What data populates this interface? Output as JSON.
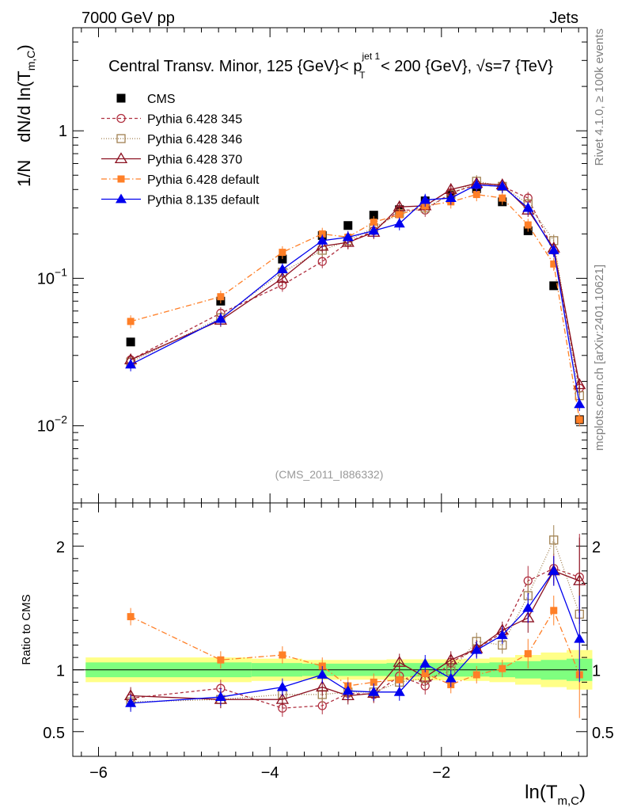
{
  "header": {
    "left": "7000 GeV pp",
    "right": "Jets"
  },
  "title": {
    "pre": "Central Transv. Minor, 125 {GeV}< p",
    "sup": "jet 1",
    "sub": "T",
    "post": " < 200 {GeV}, √s=7 {TeV}"
  },
  "side_labels": {
    "rivet": "Rivet 4.1.0, ≥ 100k events",
    "mcplots": "mcplots.cern.ch [arXiv:2401.10621]"
  },
  "analysis_label": "(CMS_2011_I886332)",
  "ylabel_main": {
    "a": "1/N",
    "b": "dN/d ln(T",
    "sub": "m,C",
    "c": ")"
  },
  "ylabel_ratio": "Ratio to CMS",
  "xlabel": {
    "a": "ln(T",
    "sub": "m,C",
    "c": ")"
  },
  "colors": {
    "cms": "#000000",
    "py345": "#b03040",
    "py346": "#a08050",
    "py370": "#8b1020",
    "pydef": "#ff7f27",
    "py8": "#0000ee",
    "band_inner": "#7fff7f",
    "band_outer": "#ffff88"
  },
  "chart_data": {
    "type": "scatter",
    "xlim": [
      -6.3,
      -0.3
    ],
    "main": {
      "yscale": "log",
      "ylim": [
        0.003,
        5
      ],
      "ytick_labels": [
        "10^-2",
        "10^-1",
        "1"
      ],
      "xtick_labels": [
        "-6",
        "-4",
        "-2"
      ]
    },
    "ratio": {
      "ylim": [
        0.3,
        2.35
      ],
      "ytick_labels": [
        "0.5",
        "1",
        "2"
      ]
    },
    "x": [
      -5.625,
      -4.575,
      -3.855,
      -3.39,
      -3.09,
      -2.79,
      -2.49,
      -2.19,
      -1.89,
      -1.59,
      -1.29,
      -0.99,
      -0.69,
      -0.39
    ],
    "band": {
      "inner": [
        0.06,
        0.06,
        0.055,
        0.05,
        0.05,
        0.05,
        0.055,
        0.055,
        0.055,
        0.055,
        0.06,
        0.07,
        0.08,
        0.09
      ],
      "outer": [
        0.1,
        0.1,
        0.09,
        0.08,
        0.08,
        0.08,
        0.085,
        0.085,
        0.085,
        0.09,
        0.1,
        0.12,
        0.14,
        0.16
      ]
    },
    "series": [
      {
        "key": "cms",
        "name": "CMS",
        "marker": "square-filled",
        "dash": "none",
        "values": [
          0.037,
          0.07,
          0.135,
          0.195,
          0.228,
          0.268,
          0.292,
          0.335,
          0.37,
          0.405,
          0.33,
          0.21,
          0.089,
          0.011
        ],
        "ratio": [
          1,
          1,
          1,
          1,
          1,
          1,
          1,
          1,
          1,
          1,
          1,
          1,
          1,
          1
        ]
      },
      {
        "key": "py345",
        "name": "Pythia 6.428 345",
        "marker": "circle-open",
        "dash": "4,3",
        "values": [
          0.028,
          0.058,
          0.09,
          0.13,
          0.175,
          0.21,
          0.29,
          0.29,
          0.38,
          0.43,
          0.42,
          0.35,
          0.155,
          0.018
        ],
        "ratio": [
          0.77,
          0.85,
          0.69,
          0.71,
          0.81,
          0.8,
          0.95,
          0.87,
          1.06,
          1.17,
          1.3,
          1.72,
          1.82,
          1.75
        ]
      },
      {
        "key": "py346",
        "name": "Pythia 6.428 346",
        "marker": "square-open",
        "dash": "1,2",
        "values": [
          0.027,
          0.054,
          0.11,
          0.155,
          0.18,
          0.22,
          0.275,
          0.3,
          0.37,
          0.455,
          0.42,
          0.32,
          0.18,
          0.016
        ],
        "ratio": [
          0.74,
          0.76,
          0.8,
          0.8,
          0.82,
          0.82,
          0.9,
          0.93,
          0.99,
          1.23,
          1.2,
          1.6,
          2.05,
          1.45
        ]
      },
      {
        "key": "py370",
        "name": "Pythia 6.428 370",
        "marker": "triangle-open",
        "dash": "none",
        "values": [
          0.028,
          0.052,
          0.1,
          0.165,
          0.175,
          0.205,
          0.305,
          0.31,
          0.4,
          0.44,
          0.43,
          0.29,
          0.16,
          0.019
        ],
        "ratio": [
          0.79,
          0.76,
          0.76,
          0.86,
          0.79,
          0.81,
          1.06,
          0.94,
          1.08,
          1.17,
          1.32,
          1.42,
          1.8,
          1.72
        ]
      },
      {
        "key": "pydef",
        "name": "Pythia 6.428 default",
        "marker": "square-filled-small",
        "dash": "7,3,1.5,3",
        "values": [
          0.051,
          0.075,
          0.15,
          0.2,
          0.19,
          0.24,
          0.27,
          0.31,
          0.33,
          0.37,
          0.35,
          0.23,
          0.125,
          0.011
        ],
        "ratio": [
          1.43,
          1.08,
          1.12,
          1.03,
          0.87,
          0.9,
          0.92,
          0.97,
          0.88,
          0.96,
          1.01,
          1.13,
          1.48,
          0.96
        ]
      },
      {
        "key": "py8",
        "name": "Pythia 8.135 default",
        "marker": "triangle-filled",
        "dash": "none",
        "values": [
          0.026,
          0.053,
          0.115,
          0.18,
          0.19,
          0.21,
          0.235,
          0.34,
          0.35,
          0.43,
          0.42,
          0.3,
          0.155,
          0.014
        ],
        "ratio": [
          0.73,
          0.78,
          0.86,
          0.96,
          0.83,
          0.82,
          0.82,
          1.05,
          0.93,
          1.16,
          1.28,
          1.5,
          1.8,
          1.25
        ]
      }
    ]
  }
}
